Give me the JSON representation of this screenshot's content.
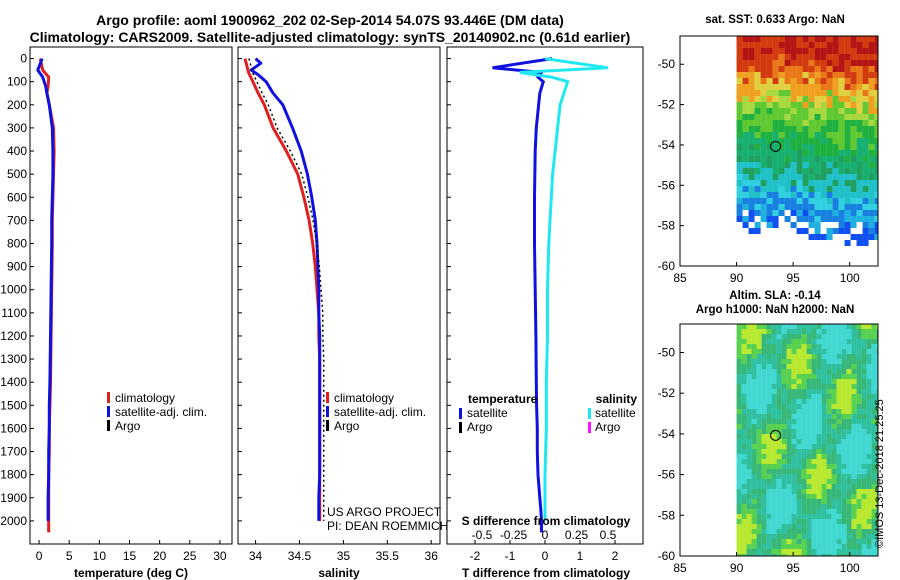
{
  "header": {
    "title_line1": "Argo profile: aoml 1900962_202 02-Sep-2014 54.07S 93.446E (DM data)",
    "title_line2": "Climatology: CARS2009. Satellite-adjusted climatology: synTS_20140902.nc (0.61d earlier)"
  },
  "map_sst": {
    "title": "sat. SST: 0.633 Argo: NaN",
    "lon_ticks": [
      "85",
      "90",
      "95",
      "100"
    ],
    "lat_ticks": [
      "-50",
      "-52",
      "-54",
      "-56",
      "-58",
      "-60"
    ],
    "argo_lon": 93.446,
    "argo_lat": -54.07
  },
  "map_sla": {
    "title1": "Altim. SLA: -0.14",
    "title2": "Argo h1000: NaN h2000: NaN",
    "lon_ticks": [
      "85",
      "90",
      "95",
      "100"
    ],
    "lat_ticks": [
      "-50",
      "-52",
      "-54",
      "-56",
      "-58",
      "-60"
    ],
    "argo_lon": 93.446,
    "argo_lat": -54.07
  },
  "depth_ticks": [
    "0",
    "100",
    "200",
    "300",
    "400",
    "500",
    "600",
    "700",
    "800",
    "900",
    "1000",
    "1100",
    "1200",
    "1300",
    "1400",
    "1500",
    "1600",
    "1700",
    "1800",
    "1900",
    "2000"
  ],
  "colors": {
    "climatology": "#e02020",
    "satellite": "#1010e0",
    "argo": "#000000",
    "sat_salinity": "#20e8f0",
    "argo_salinity": "#ff10ff"
  },
  "credit": {
    "line1": "US ARGO PROJECT",
    "line2": "PI: DEAN ROEMMICH"
  },
  "stamp": "©IMOS 13-Dec-2018 21:25:25",
  "chart_data": [
    {
      "type": "line",
      "xlabel": "temperature (deg C)",
      "ylabel": "",
      "xlim": [
        -1.5,
        32
      ],
      "ylim": [
        2100,
        -50
      ],
      "xticks": [
        "0",
        "5",
        "10",
        "15",
        "20",
        "25",
        "30"
      ],
      "legend": [
        "climatology",
        "satellite-adj. clim.",
        "Argo"
      ],
      "series": [
        {
          "name": "climatology",
          "x": [
            0.2,
            0.6,
            1.6,
            1.5,
            1.3,
            1.7,
            2.4,
            2.5,
            2.4,
            2.3,
            2.2,
            2.2,
            2.1,
            2.0,
            1.9,
            1.8,
            1.7,
            1.7,
            1.6,
            1.6,
            1.6
          ],
          "y": [
            0,
            50,
            80,
            120,
            150,
            200,
            300,
            400,
            500,
            600,
            700,
            800,
            1000,
            1200,
            1400,
            1500,
            1600,
            1700,
            1800,
            1900,
            2050
          ]
        },
        {
          "name": "satellite-adj. clim.",
          "x": [
            0.5,
            -0.2,
            0.6,
            1.1,
            1.3,
            1.7,
            2.2,
            2.3,
            2.3,
            2.2,
            2.1,
            2.1,
            2.0,
            1.9,
            1.8,
            1.7,
            1.7,
            1.6,
            1.6,
            1.5,
            1.5
          ],
          "y": [
            0,
            50,
            80,
            120,
            150,
            200,
            300,
            400,
            500,
            600,
            700,
            800,
            1000,
            1200,
            1400,
            1500,
            1600,
            1700,
            1800,
            1900,
            2000
          ]
        }
      ]
    },
    {
      "type": "line",
      "xlabel": "salinity",
      "ylabel": "",
      "xlim": [
        33.8,
        36.1
      ],
      "ylim": [
        2100,
        -50
      ],
      "xticks": [
        "34",
        "34.5",
        "35",
        "35.5",
        "36"
      ],
      "legend": [
        "climatology",
        "satellite-adj. clim.",
        "Argo"
      ],
      "series": [
        {
          "name": "climatology",
          "x": [
            33.88,
            33.92,
            33.97,
            34.03,
            34.1,
            34.2,
            34.35,
            34.48,
            34.55,
            34.61,
            34.65,
            34.68,
            34.7,
            34.72,
            34.72,
            34.73,
            34.73,
            34.73,
            34.73,
            34.73,
            34.73,
            34.73
          ],
          "y": [
            0,
            60,
            100,
            150,
            200,
            300,
            400,
            500,
            600,
            700,
            800,
            900,
            1000,
            1100,
            1200,
            1300,
            1400,
            1500,
            1600,
            1800,
            1900,
            2000
          ]
        },
        {
          "name": "satellite-adj. clim.",
          "x": [
            34.0,
            34.06,
            33.95,
            34.03,
            34.12,
            34.2,
            34.31,
            34.42,
            34.52,
            34.59,
            34.64,
            34.68,
            34.7,
            34.71,
            34.72,
            34.72,
            34.73,
            34.73,
            34.73,
            34.73,
            34.72,
            34.72
          ],
          "y": [
            0,
            20,
            50,
            70,
            100,
            150,
            200,
            300,
            400,
            500,
            600,
            700,
            800,
            900,
            1000,
            1100,
            1200,
            1400,
            1600,
            1800,
            1900,
            2000
          ]
        }
      ]
    },
    {
      "type": "line",
      "xlabel": "T difference from climatology",
      "title": "S difference from climatology",
      "xlim": [
        -2.8,
        2.8
      ],
      "ylim": [
        2100,
        -50
      ],
      "xticks": [
        "-2",
        "-1",
        "0",
        "1",
        "2"
      ],
      "xticks_top": [
        "-0.5",
        "-0.25",
        "0",
        "0.25",
        "0.5"
      ],
      "legend_left": {
        "title": "temperature",
        "items": [
          "satellite",
          "Argo"
        ]
      },
      "legend_right": {
        "title": "salinity",
        "items": [
          "satellite",
          "Argo"
        ]
      },
      "series": [
        {
          "name": "satellite",
          "x": [
            0.2,
            -1.5,
            -0.1,
            -0.2,
            -0.05,
            -0.15,
            -0.25,
            -0.28,
            -0.3,
            -0.3,
            -0.28,
            -0.26,
            -0.25,
            -0.24,
            -0.22,
            -0.22,
            -0.2,
            -0.15,
            -0.12,
            -0.1,
            -0.1
          ],
          "y": [
            0,
            40,
            60,
            80,
            100,
            150,
            300,
            400,
            600,
            800,
            1000,
            1200,
            1400,
            1500,
            1600,
            1700,
            1800,
            1900,
            1950,
            2000,
            2050
          ]
        },
        {
          "name": "satellite",
          "x": [
            0.0,
            0.5,
            -0.2,
            0.05,
            0.18,
            0.15,
            0.12,
            0.1,
            0.08,
            0.06,
            0.05,
            0.04,
            0.03,
            0.02,
            0.02,
            0.01,
            0.01,
            0.0,
            0.0
          ],
          "y": [
            0,
            40,
            60,
            80,
            100,
            150,
            200,
            300,
            400,
            500,
            600,
            700,
            800,
            1000,
            1200,
            1400,
            1600,
            1800,
            2000
          ]
        }
      ]
    }
  ]
}
